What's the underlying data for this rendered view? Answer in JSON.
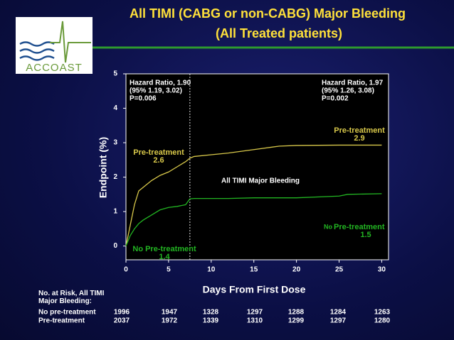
{
  "logo": "ACCOAST",
  "chart_data": {
    "type": "line",
    "title": "All TIMI (CABG or non-CABG) Major Bleeding",
    "subtitle": "(All Treated patients)",
    "x_label": "Days From First Dose",
    "y_label": "Endpoint (%)",
    "x": [
      0,
      0.5,
      1,
      1.5,
      2,
      3,
      4,
      5,
      6,
      7,
      7.5,
      8,
      10,
      12,
      15,
      18,
      20,
      25,
      26,
      30
    ],
    "series": [
      {
        "name": "Pre-treatment",
        "color": "#d8c84a",
        "values": [
          0,
          0.6,
          1.2,
          1.6,
          1.7,
          1.9,
          2.05,
          2.15,
          2.3,
          2.45,
          2.55,
          2.6,
          2.65,
          2.7,
          2.8,
          2.9,
          2.92,
          2.93,
          2.93,
          2.93
        ]
      },
      {
        "name": "No Pre-treatment",
        "color": "#22b522",
        "values": [
          0,
          0.3,
          0.5,
          0.65,
          0.75,
          0.9,
          1.05,
          1.12,
          1.15,
          1.2,
          1.37,
          1.38,
          1.38,
          1.38,
          1.4,
          1.4,
          1.4,
          1.45,
          1.5,
          1.52
        ]
      }
    ],
    "xlim": [
      0,
      30.8
    ],
    "ylim": [
      -0.4,
      5
    ],
    "xticks": [
      0,
      5,
      10,
      15,
      20,
      25,
      30
    ],
    "yticks": [
      0,
      1,
      2,
      3,
      4,
      5
    ],
    "reference_line_x": 7.5,
    "annotations": {
      "hr_left": [
        "Hazard Ratio, 1.90",
        "(95% 1.19, 3.02)",
        "P=0.006"
      ],
      "hr_right": [
        "Hazard Ratio, 1.97",
        "(95% 1.26, 3.08)",
        "P=0.002"
      ],
      "center": "All TIMI Major Bleeding",
      "pre_left": [
        "Pre-treatment",
        "2.6"
      ],
      "pre_right": [
        "Pre-treatment",
        "2.9"
      ],
      "no_left": [
        "No Pre-treatment",
        "1.4"
      ],
      "no_right": [
        "No",
        "Pre-treatment",
        "1.5"
      ]
    },
    "risk_table": {
      "label": "No. at Risk, All TIMI Major Bleeding:",
      "rows": [
        {
          "name": "No pre-treatment",
          "values": [
            1996,
            1947,
            1328,
            1297,
            1288,
            1284,
            1263
          ]
        },
        {
          "name": "Pre-treatment",
          "values": [
            2037,
            1972,
            1339,
            1310,
            1299,
            1297,
            1280
          ]
        }
      ]
    }
  }
}
